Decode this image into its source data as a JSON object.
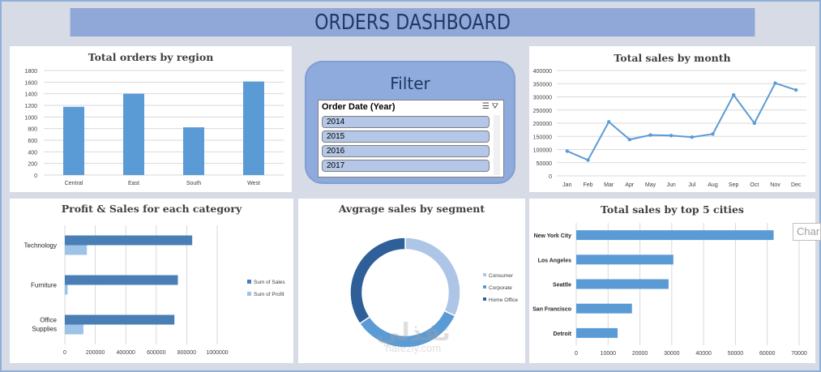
{
  "title": "ORDERS DASHBOARD",
  "filter": {
    "title": "Filter",
    "slicer_header": "Order Date (Year)",
    "items": [
      "2014",
      "2015",
      "2016",
      "2017"
    ]
  },
  "floating_tab": "Char",
  "watermark": {
    "arabic": "نفذلي",
    "latin": "nafezly.com"
  },
  "chart_data": [
    {
      "type": "bar",
      "title": "Total orders by region",
      "categories": [
        "Central",
        "East",
        "South",
        "West"
      ],
      "values": [
        1175,
        1401,
        822,
        1611
      ],
      "ylim": [
        0,
        1800
      ],
      "yticks": [
        0,
        200,
        400,
        600,
        800,
        1000,
        1200,
        1400,
        1600,
        1800
      ],
      "color": "#5b9bd5",
      "grid": true
    },
    {
      "type": "line",
      "title": "Total sales by month",
      "categories": [
        "Jan",
        "Feb",
        "Mar",
        "Apr",
        "May",
        "Jun",
        "Jul",
        "Aug",
        "Sep",
        "Oct",
        "Nov",
        "Dec"
      ],
      "values": [
        94000,
        60000,
        205000,
        138000,
        155000,
        153000,
        147000,
        159000,
        307000,
        200000,
        352000,
        326000
      ],
      "ylim": [
        0,
        400000
      ],
      "yticks": [
        0,
        50000,
        100000,
        150000,
        200000,
        250000,
        300000,
        350000,
        400000
      ],
      "color": "#5b9bd5",
      "grid": true
    },
    {
      "type": "bar",
      "orientation": "horizontal",
      "title": "Profit & Sales for each category",
      "categories": [
        "Technology",
        "Furniture",
        "Office Supplies"
      ],
      "series": [
        {
          "name": "Sum of Sales",
          "values": [
            836000,
            742000,
            719000
          ],
          "color": "#4a7fb5"
        },
        {
          "name": "Sum of Profit",
          "values": [
            145000,
            18000,
            122000
          ],
          "color": "#9dc3e6"
        }
      ],
      "xlim": [
        0,
        1000000
      ],
      "xticks": [
        0,
        200000,
        400000,
        600000,
        800000,
        1000000
      ],
      "legend": "right",
      "grid": true
    },
    {
      "type": "pie",
      "subtype": "doughnut",
      "title": "Avgrage sales by segment",
      "categories": [
        "Consumer",
        "Corporate",
        "Home Office"
      ],
      "values": [
        223,
        234,
        241
      ],
      "colors": [
        "#adc6e8",
        "#5b9bd5",
        "#2e5f99"
      ],
      "legend": "right"
    },
    {
      "type": "bar",
      "orientation": "horizontal",
      "title": "Total sales by top 5 cities",
      "categories": [
        "New York City",
        "Los Angeles",
        "Seattle",
        "San Francisco",
        "Detroit"
      ],
      "values": [
        62000,
        30500,
        29000,
        17500,
        13000
      ],
      "xlim": [
        0,
        70000
      ],
      "xticks": [
        0,
        10000,
        20000,
        30000,
        40000,
        50000,
        60000,
        70000
      ],
      "color": "#5b9bd5",
      "grid": true
    }
  ]
}
